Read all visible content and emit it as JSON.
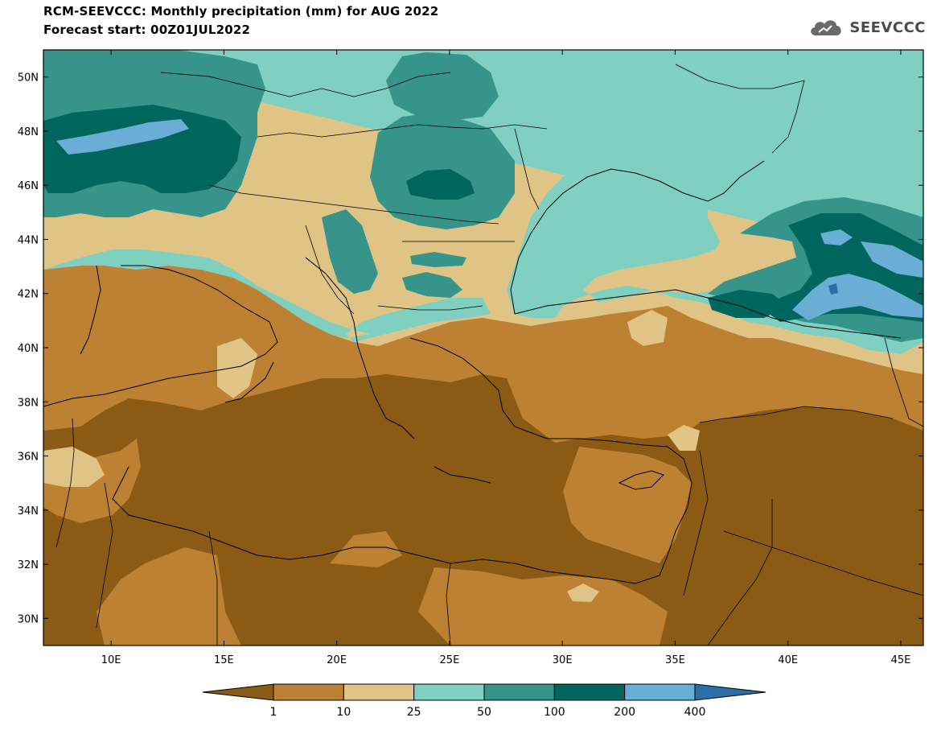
{
  "header": {
    "title": "RCM-SEEVCCC: Monthly precipitation (mm) for AUG 2022",
    "subtitle": "Forecast start: 00Z01JUL2022",
    "logo_text": "SEEVCCC"
  },
  "map": {
    "lat_labels": [
      "50N",
      "48N",
      "46N",
      "44N",
      "42N",
      "40N",
      "38N",
      "36N",
      "34N",
      "32N",
      "30N"
    ],
    "lon_labels": [
      "10E",
      "15E",
      "20E",
      "25E",
      "30E",
      "35E",
      "40E",
      "45E"
    ],
    "lat_values": [
      50,
      48,
      46,
      44,
      42,
      40,
      38,
      36,
      34,
      32,
      30
    ],
    "lon_values": [
      10,
      15,
      20,
      25,
      30,
      35,
      40,
      45
    ],
    "extent": {
      "lon_min": 7,
      "lon_max": 46,
      "lat_min": 29,
      "lat_max": 51
    }
  },
  "legend": {
    "labels": [
      "1",
      "10",
      "25",
      "50",
      "100",
      "200",
      "400"
    ],
    "colors": [
      "#8b5a14",
      "#bd8133",
      "#e0c485",
      "#7fd0c1",
      "#36948a",
      "#01665e",
      "#6aaed6",
      "#2c6fa8"
    ]
  }
}
